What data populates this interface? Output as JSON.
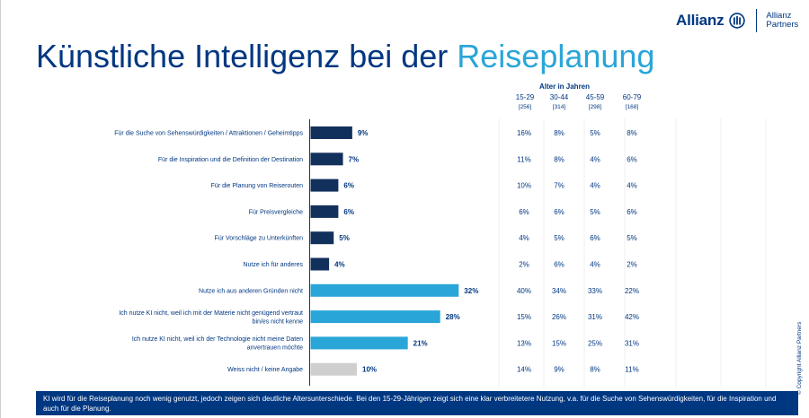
{
  "brand": {
    "name": "Allianz",
    "partners_line1": "Allianz",
    "partners_line2": "Partners"
  },
  "title": {
    "main": "Künstliche Intelligenz bei der ",
    "accent": "Reiseplanung"
  },
  "age_header": "Alter in Jahren",
  "footer_text": "KI wird für die Reiseplanung noch wenig genutzt, jedoch zeigen sich deutliche Altersunterschiede. Bei den 15-29-Jährigen zeigt sich eine klar verbreitetere Nutzung, v.a. für die Suche von Sehenswürdigkeiten, für die Inspiration und auch für die Planung.",
  "copyright": "© Copyright Allianz Partners",
  "colors": {
    "dark": "#12305c",
    "light": "#2aa5d8",
    "grey": "#cfcfcf",
    "brand": "#003781"
  },
  "chart_data": {
    "type": "bar",
    "orientation": "horizontal",
    "xlim": [
      0,
      40
    ],
    "categories": [
      "Für die Suche von Sehenswürdigkeiten / Attraktionen / Geheimtipps",
      "Für die Inspiration und die Definition der Destination",
      "Für die Planung von Reiserouten",
      "Für Preisvergleiche",
      "Für Vorschläge zu Unterkünften",
      "Nutze ich für anderes",
      "Nutze ich aus anderen Gründen nicht",
      "Ich nutze KI nicht, weil ich mit der Materie nicht genügend vertraut bin/es nicht kenne",
      "Ich nutze KI nicht, weil ich der Technologie nicht meine Daten anvertrauen möchte",
      "Weiss nicht / keine Angabe"
    ],
    "values": [
      9,
      7,
      6,
      6,
      5,
      4,
      32,
      28,
      21,
      10
    ],
    "value_labels": [
      "9%",
      "7%",
      "6%",
      "6%",
      "5%",
      "4%",
      "32%",
      "28%",
      "21%",
      "10%"
    ],
    "bar_groups": [
      "dark",
      "dark",
      "dark",
      "dark",
      "dark",
      "dark",
      "light",
      "light",
      "light",
      "grey"
    ],
    "age_groups": [
      {
        "label": "15-29",
        "n": "[256]",
        "values": [
          "16%",
          "11%",
          "10%",
          "6%",
          "4%",
          "2%",
          "40%",
          "15%",
          "13%",
          "14%"
        ]
      },
      {
        "label": "30-44",
        "n": "[314]",
        "values": [
          "8%",
          "8%",
          "7%",
          "6%",
          "5%",
          "6%",
          "34%",
          "26%",
          "15%",
          "9%"
        ]
      },
      {
        "label": "45-59",
        "n": "[298]",
        "values": [
          "5%",
          "4%",
          "4%",
          "5%",
          "6%",
          "4%",
          "33%",
          "31%",
          "25%",
          "8%"
        ]
      },
      {
        "label": "60-79",
        "n": "[168]",
        "values": [
          "8%",
          "6%",
          "4%",
          "6%",
          "5%",
          "2%",
          "22%",
          "42%",
          "31%",
          "11%"
        ]
      }
    ]
  }
}
